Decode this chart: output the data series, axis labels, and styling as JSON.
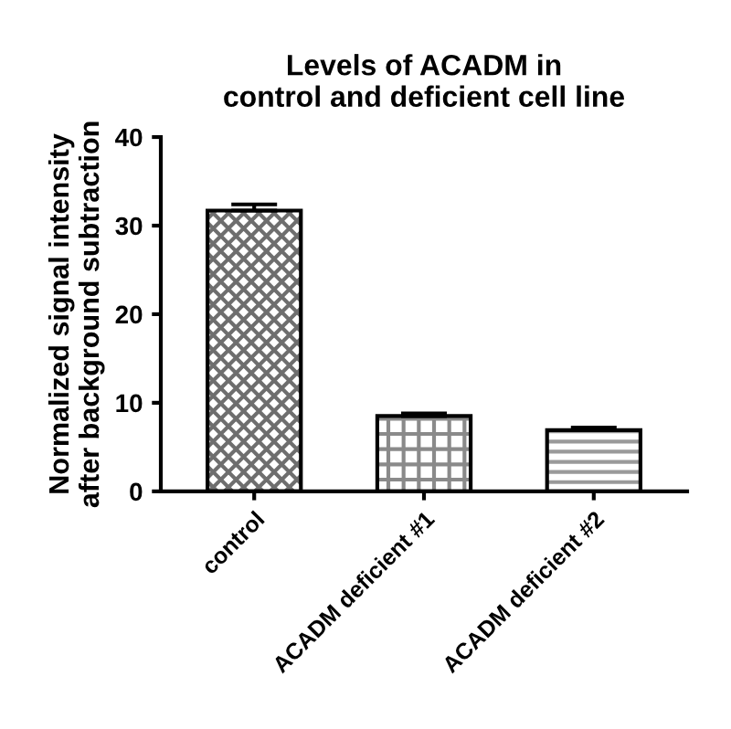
{
  "chart_data": {
    "type": "bar",
    "title": "Levels of ACADM in\ncontrol and deficient cell line",
    "ylabel": "Normalized signal intensity\nafter background subtraction",
    "categories": [
      "control",
      "ACADM deficient #1",
      "ACADM deficient #2"
    ],
    "values": [
      31.7,
      8.5,
      6.9
    ],
    "errors": [
      [
        31.7,
        32.4
      ],
      [
        8.5,
        8.8
      ],
      [
        6.9,
        7.2
      ]
    ],
    "colors": [
      "#6e6e6e",
      "#8a8a8a",
      "#9a9a9a"
    ],
    "ylim": [
      0,
      40
    ],
    "yticks": [
      0,
      10,
      20,
      30,
      40
    ],
    "grid": false,
    "legend": false
  }
}
